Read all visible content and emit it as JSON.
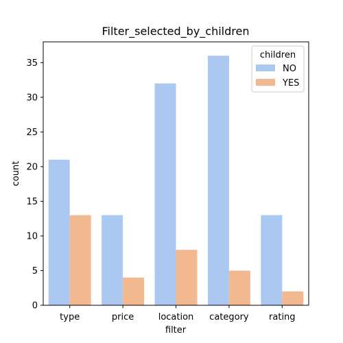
{
  "chart_data": {
    "type": "bar",
    "title": "Filter_selected_by_children",
    "xlabel": "filter",
    "ylabel": "count",
    "categories": [
      "type",
      "price",
      "location",
      "category",
      "rating"
    ],
    "series": [
      {
        "name": "NO",
        "values": [
          21,
          13,
          32,
          36,
          13
        ],
        "color": "#abc9f0"
      },
      {
        "name": "YES",
        "values": [
          13,
          4,
          8,
          5,
          2
        ],
        "color": "#f2b991"
      }
    ],
    "ylim": [
      0,
      38
    ],
    "yticks": [
      0,
      5,
      10,
      15,
      20,
      25,
      30,
      35
    ],
    "grid": false,
    "legend": {
      "title": "children",
      "placement": "top-right"
    }
  }
}
